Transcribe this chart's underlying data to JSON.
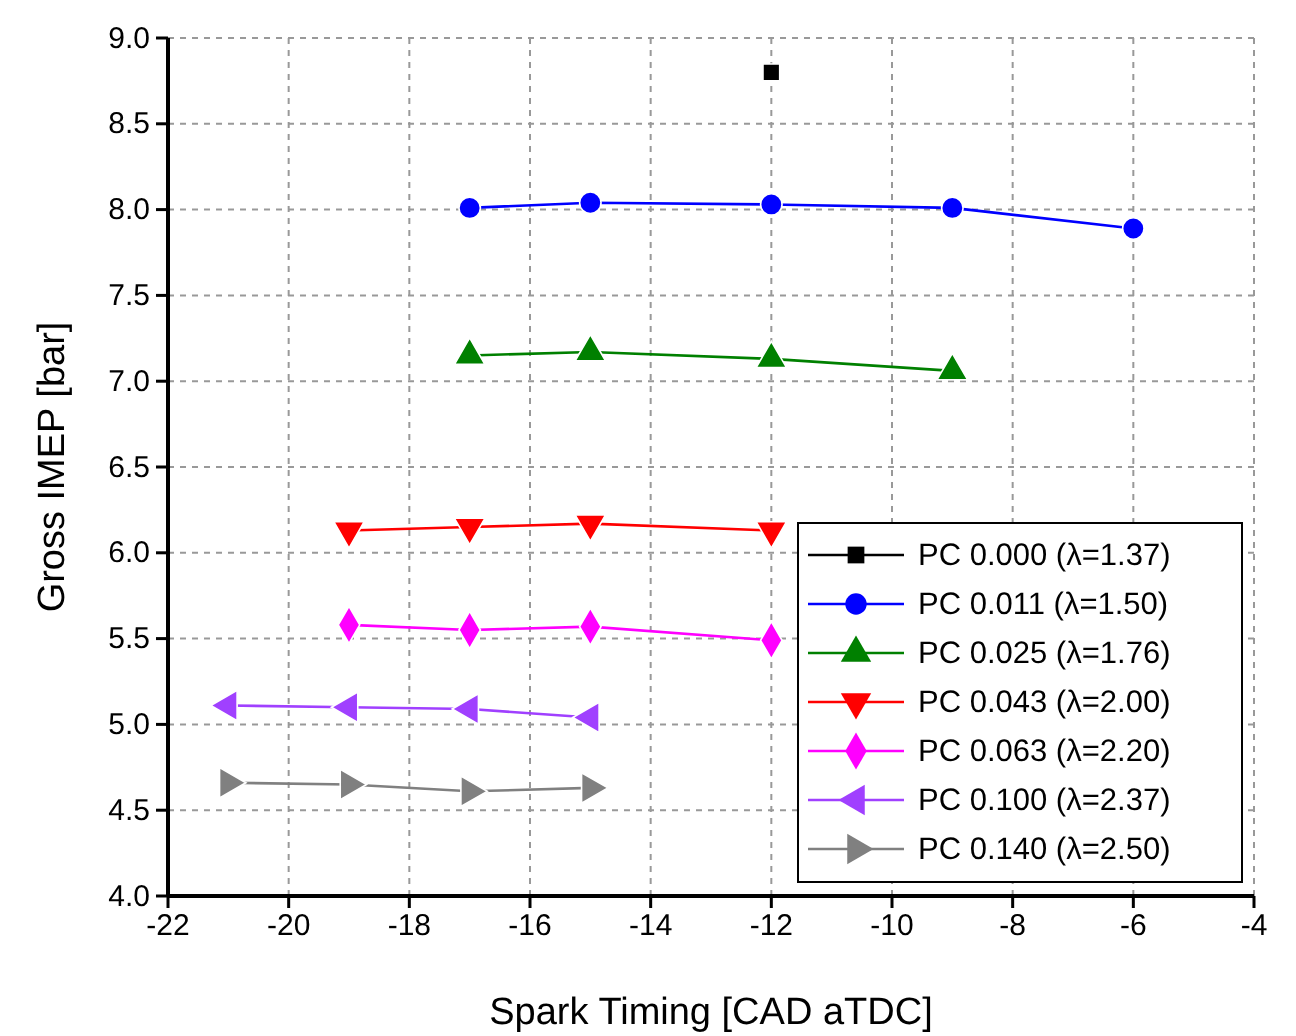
{
  "chart_data": {
    "type": "line",
    "xlabel": "Spark Timing [CAD aTDC]",
    "ylabel": "Gross IMEP [bar]",
    "xlim": [
      -22,
      -4
    ],
    "xticks": [
      -22,
      -20,
      -18,
      -16,
      -14,
      -12,
      -10,
      -8,
      -6,
      -4
    ],
    "ylim": [
      4,
      9
    ],
    "yticks": [
      {
        "value": 4,
        "label": "4.0"
      },
      {
        "value": 4.5,
        "label": "4.5"
      },
      {
        "value": 5,
        "label": "5.0"
      },
      {
        "value": 5.5,
        "label": "5.5"
      },
      {
        "value": 6,
        "label": "6.0"
      },
      {
        "value": 6.5,
        "label": "6.5"
      },
      {
        "value": 7,
        "label": "7.0"
      },
      {
        "value": 7.5,
        "label": "7.5"
      },
      {
        "value": 8,
        "label": "8.0"
      },
      {
        "value": 8.5,
        "label": "8.5"
      },
      {
        "value": 9,
        "label": "9.0"
      }
    ],
    "grid": true,
    "legend": "bottom right",
    "line_style": "solid",
    "series": [
      {
        "name": "PC 0.000 (λ=1.37)",
        "color": "#000000",
        "marker": "square",
        "x": [
          -12
        ],
        "values": [
          8.8
        ]
      },
      {
        "name": "PC 0.011 (λ=1.50)",
        "color": "#0000ff",
        "marker": "circle",
        "x": [
          -17,
          -15,
          -12,
          -9,
          -6
        ],
        "values": [
          8.01,
          8.04,
          8.03,
          8.01,
          7.89
        ]
      },
      {
        "name": "PC 0.025 (λ=1.76)",
        "color": "#008000",
        "marker": "triangle",
        "x": [
          -17,
          -15,
          -12,
          -9
        ],
        "values": [
          7.15,
          7.17,
          7.13,
          7.06
        ]
      },
      {
        "name": "PC 0.043 (λ=2.00)",
        "color": "#ff0000",
        "marker": "triangle-down",
        "x": [
          -19,
          -17,
          -15,
          -12
        ],
        "values": [
          6.13,
          6.15,
          6.17,
          6.13
        ]
      },
      {
        "name": "PC 0.063 (λ=2.20)",
        "color": "#ff00ff",
        "marker": "diamond",
        "x": [
          -19,
          -17,
          -15,
          -12
        ],
        "values": [
          5.58,
          5.55,
          5.57,
          5.49
        ]
      },
      {
        "name": "PC 0.100 (λ=2.37)",
        "color": "#a040ff",
        "marker": "triangle-left",
        "x": [
          -21,
          -19,
          -17,
          -15
        ],
        "values": [
          5.11,
          5.1,
          5.09,
          5.04
        ]
      },
      {
        "name": "PC 0.140 (λ=2.50)",
        "color": "#808080",
        "marker": "triangle-right",
        "x": [
          -21,
          -19,
          -17,
          -15
        ],
        "values": [
          4.66,
          4.65,
          4.61,
          4.63
        ]
      }
    ]
  }
}
